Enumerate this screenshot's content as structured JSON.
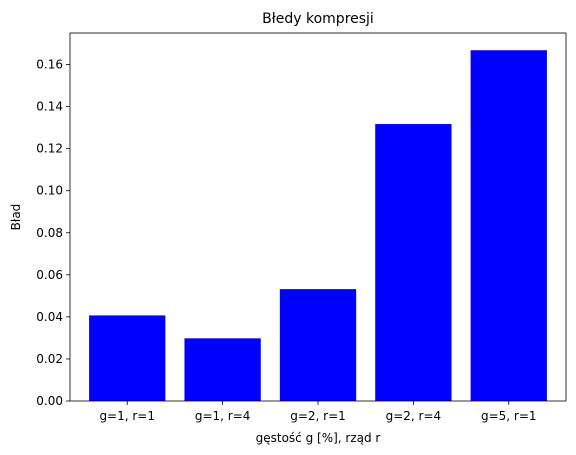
{
  "chart_data": {
    "type": "bar",
    "title": "Błedy kompresji",
    "xlabel": "gęstość g [%], rząd r",
    "ylabel": "Bład",
    "categories": [
      "g=1, r=1",
      "g=1, r=4",
      "g=2, r=1",
      "g=2, r=4",
      "g=5, r=1"
    ],
    "values": [
      0.0407,
      0.0298,
      0.0532,
      0.1317,
      0.1668
    ],
    "ylim": [
      0,
      0.175
    ],
    "yticks": [
      0.0,
      0.02,
      0.04,
      0.06,
      0.08,
      0.1,
      0.12,
      0.14,
      0.16
    ],
    "ytick_labels": [
      "0.00",
      "0.02",
      "0.04",
      "0.06",
      "0.08",
      "0.10",
      "0.12",
      "0.14",
      "0.16"
    ],
    "bar_color": "#0000ff",
    "grid": false,
    "legend": false
  }
}
